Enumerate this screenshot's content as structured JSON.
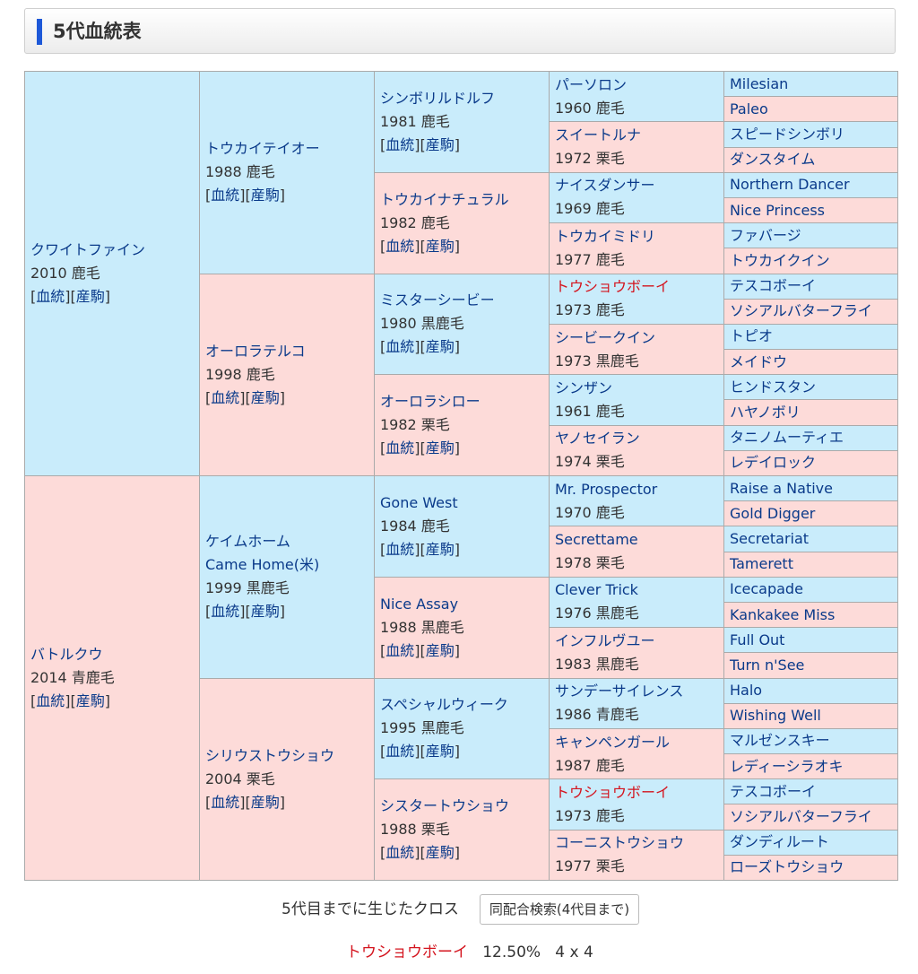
{
  "header": {
    "title": "5代血統表"
  },
  "links": {
    "open": "[",
    "pedigree": "血統",
    "mid": "][",
    "progeny": "産駒",
    "close": "]"
  },
  "g1": [
    {
      "name": "クワイトファイン",
      "info": "2010 鹿毛"
    },
    {
      "name": "バトルクウ",
      "info": "2014 青鹿毛"
    }
  ],
  "g2": [
    {
      "name": "トウカイテイオー",
      "info": "1988 鹿毛"
    },
    {
      "name": "オーロラテルコ",
      "info": "1998 鹿毛"
    },
    {
      "name": "ケイムホーム",
      "name2": "Came Home(米)",
      "info": "1999 黒鹿毛"
    },
    {
      "name": "シリウストウショウ",
      "info": "2004 栗毛"
    }
  ],
  "g3": [
    {
      "name": "シンボリルドルフ",
      "info": "1981 鹿毛"
    },
    {
      "name": "トウカイナチュラル",
      "info": "1982 鹿毛"
    },
    {
      "name": "ミスターシービー",
      "info": "1980 黒鹿毛"
    },
    {
      "name": "オーロラシロー",
      "info": "1982 栗毛"
    },
    {
      "name": "Gone West",
      "info": "1984 鹿毛"
    },
    {
      "name": "Nice Assay",
      "info": "1988 黒鹿毛"
    },
    {
      "name": "スペシャルウィーク",
      "info": "1995 黒鹿毛"
    },
    {
      "name": "シスタートウショウ",
      "info": "1988 栗毛"
    }
  ],
  "g4": [
    {
      "name": "パーソロン",
      "info": "1960 鹿毛"
    },
    {
      "name": "スイートルナ",
      "info": "1972 栗毛"
    },
    {
      "name": "ナイスダンサー",
      "info": "1969 鹿毛"
    },
    {
      "name": "トウカイミドリ",
      "info": "1977 鹿毛"
    },
    {
      "name": "トウショウボーイ",
      "info": "1973 鹿毛"
    },
    {
      "name": "シービークイン",
      "info": "1973 黒鹿毛"
    },
    {
      "name": "シンザン",
      "info": "1961 鹿毛"
    },
    {
      "name": "ヤノセイラン",
      "info": "1974 栗毛"
    },
    {
      "name": "Mr. Prospector",
      "info": "1970 鹿毛"
    },
    {
      "name": "Secrettame",
      "info": "1978 栗毛"
    },
    {
      "name": "Clever Trick",
      "info": "1976 黒鹿毛"
    },
    {
      "name": "インフルヴユー",
      "info": "1983 黒鹿毛"
    },
    {
      "name": "サンデーサイレンス",
      "info": "1986 青鹿毛"
    },
    {
      "name": "キャンペンガール",
      "info": "1987 鹿毛"
    },
    {
      "name": "トウショウボーイ",
      "info": "1973 鹿毛"
    },
    {
      "name": "コーニストウショウ",
      "info": "1977 栗毛"
    }
  ],
  "g5": [
    "Milesian",
    "Paleo",
    "スピードシンボリ",
    "ダンスタイム",
    "Northern Dancer",
    "Nice Princess",
    "ファバージ",
    "トウカイクイン",
    "テスコボーイ",
    "ソシアルバターフライ",
    "トピオ",
    "メイドウ",
    "ヒンドスタン",
    "ハヤノボリ",
    "タニノムーティエ",
    "レデイロック",
    "Raise a Native",
    "Gold Digger",
    "Secretariat",
    "Tamerett",
    "Icecapade",
    "Kankakee Miss",
    "Full Out",
    "Turn n'See",
    "Halo",
    "Wishing Well",
    "マルゼンスキー",
    "レディーシラオキ",
    "テスコボーイ",
    "ソシアルバターフライ",
    "ダンディルート",
    "ローズトウショウ"
  ],
  "cross": {
    "label": "5代目までに生じたクロス",
    "button": "同配合検索(4代目まで)",
    "name": "トウショウボーイ",
    "percent": "12.50%",
    "gen": "4 x 4"
  },
  "colors": {
    "male": "#c9ecfb",
    "female": "#fddbd9",
    "link": "#0a3a8a",
    "cross": "#d4141e"
  }
}
